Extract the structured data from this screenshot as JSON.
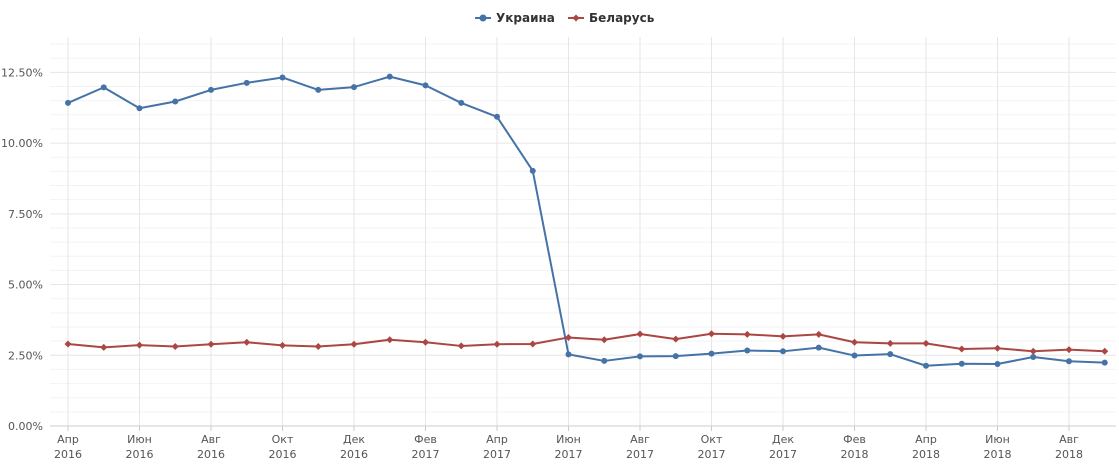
{
  "chart_data": {
    "type": "line",
    "title": "",
    "xlabel": "",
    "ylabel": "",
    "ylim": [
      0,
      13.75
    ],
    "y_ticks": [
      "0.00%",
      "2.50%",
      "5.00%",
      "7.50%",
      "10.00%",
      "12.50%"
    ],
    "y_tick_values": [
      0,
      2.5,
      5,
      7.5,
      10,
      12.5
    ],
    "x_tick_labels": [
      {
        "month": "Апр",
        "year": "2016"
      },
      {
        "month": "Июн",
        "year": "2016"
      },
      {
        "month": "Авг",
        "year": "2016"
      },
      {
        "month": "Окт",
        "year": "2016"
      },
      {
        "month": "Дек",
        "year": "2016"
      },
      {
        "month": "Фев",
        "year": "2017"
      },
      {
        "month": "Апр",
        "year": "2017"
      },
      {
        "month": "Июн",
        "year": "2017"
      },
      {
        "month": "Авг",
        "year": "2017"
      },
      {
        "month": "Окт",
        "year": "2017"
      },
      {
        "month": "Дек",
        "year": "2017"
      },
      {
        "month": "Фев",
        "year": "2018"
      },
      {
        "month": "Апр",
        "year": "2018"
      },
      {
        "month": "Июн",
        "year": "2018"
      },
      {
        "month": "Авг",
        "year": "2018"
      }
    ],
    "x": [
      "2016-04",
      "2016-05",
      "2016-06",
      "2016-07",
      "2016-08",
      "2016-09",
      "2016-10",
      "2016-11",
      "2016-12",
      "2017-01",
      "2017-02",
      "2017-03",
      "2017-04",
      "2017-05",
      "2017-06",
      "2017-07",
      "2017-08",
      "2017-09",
      "2017-10",
      "2017-11",
      "2017-12",
      "2018-01",
      "2018-02",
      "2018-03",
      "2018-04",
      "2018-05",
      "2018-06",
      "2018-07",
      "2018-08",
      "2018-09"
    ],
    "grid": true,
    "legend_position": "top-center",
    "series": [
      {
        "name": "Украина",
        "color": "#4572a7",
        "marker": "circle",
        "values": [
          11.42,
          11.97,
          11.23,
          11.47,
          11.88,
          12.13,
          12.32,
          11.88,
          11.98,
          12.35,
          12.04,
          11.42,
          10.93,
          9.02,
          2.53,
          2.3,
          2.46,
          2.47,
          2.56,
          2.67,
          2.64,
          2.77,
          2.49,
          2.54,
          2.13,
          2.2,
          2.19,
          2.44,
          2.29,
          2.24
        ]
      },
      {
        "name": "Беларусь",
        "color": "#aa4643",
        "marker": "diamond",
        "values": [
          2.9,
          2.78,
          2.86,
          2.81,
          2.89,
          2.96,
          2.85,
          2.81,
          2.89,
          3.05,
          2.96,
          2.83,
          2.89,
          2.9,
          3.13,
          3.05,
          3.25,
          3.07,
          3.26,
          3.24,
          3.17,
          3.24,
          2.96,
          2.92,
          2.92,
          2.72,
          2.75,
          2.64,
          2.7,
          2.64
        ]
      }
    ]
  }
}
